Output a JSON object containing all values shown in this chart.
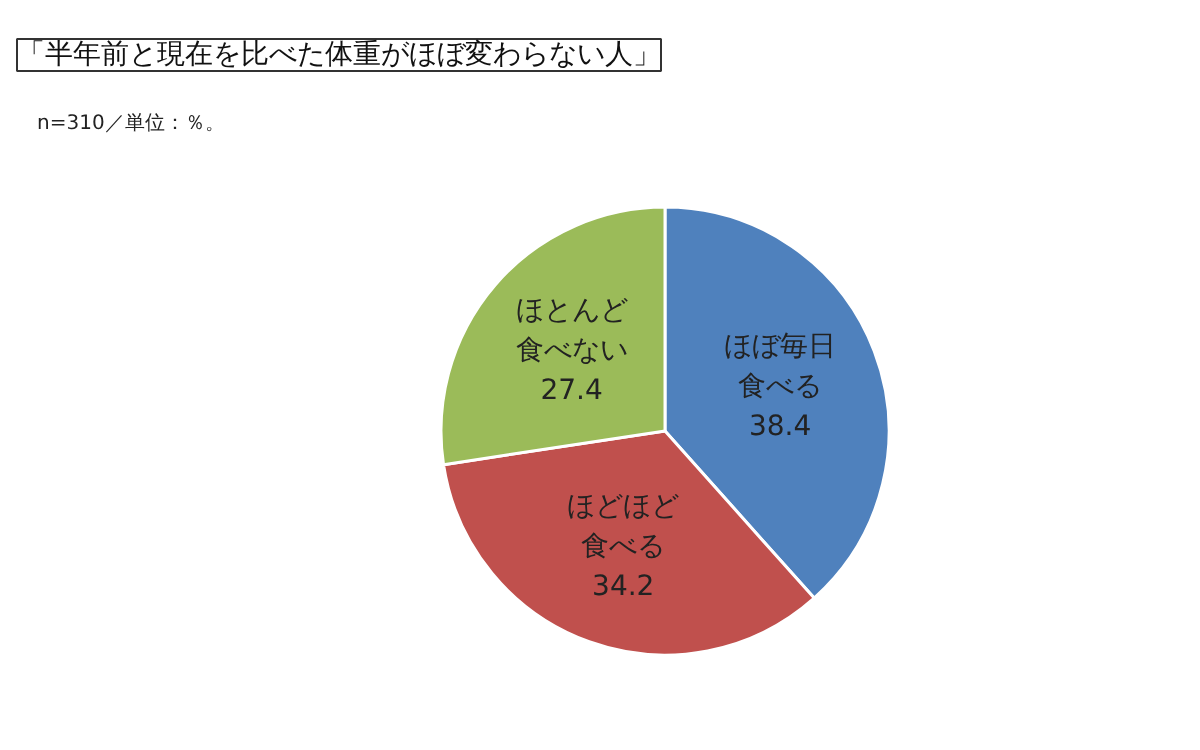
{
  "chart_data": {
    "type": "pie",
    "title": "「半年前と現在を比べた体重がほぼ変わらない人」",
    "subtitle": "n=310／単位：％。",
    "categories": [
      "ほぼ毎日食べる",
      "ほどほど食べる",
      "ほとんど食べない"
    ],
    "values": [
      38.4,
      34.2,
      27.4
    ],
    "colors": [
      "#4f81bd",
      "#c0504d",
      "#9bbb59"
    ],
    "data_labels": true
  }
}
